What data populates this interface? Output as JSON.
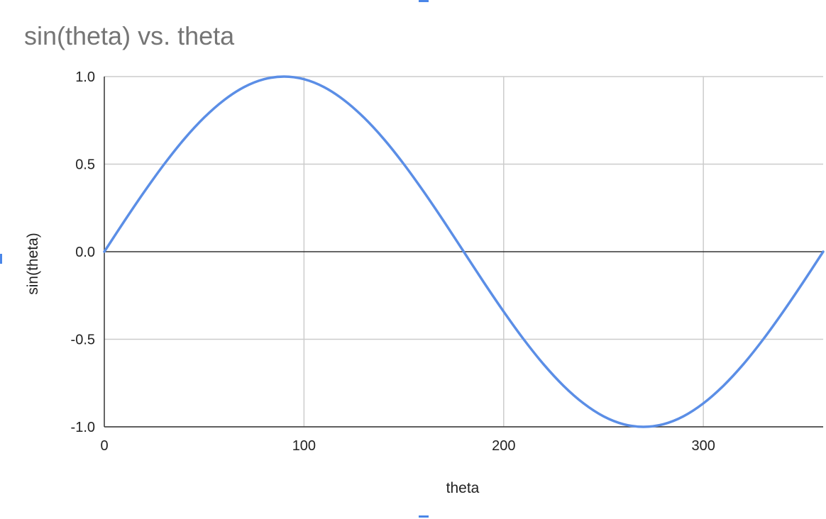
{
  "colors": {
    "series": "#5b8ee6",
    "grid": "#cccccc",
    "zero_line": "#333333",
    "title": "#757575",
    "text": "#222222",
    "selection_handle": "#4a86e8"
  },
  "chart_data": {
    "type": "line",
    "title": "sin(theta) vs. theta",
    "xlabel": "theta",
    "ylabel": "sin(theta)",
    "xlim": [
      0,
      360
    ],
    "ylim": [
      -1.0,
      1.0
    ],
    "x_ticks": [
      0,
      100,
      200,
      300
    ],
    "x_tick_labels": [
      "0",
      "100",
      "200",
      "300"
    ],
    "y_ticks": [
      1.0,
      0.5,
      0.0,
      -0.5,
      -1.0
    ],
    "y_tick_labels": [
      "1.0",
      "0.5",
      "0.0",
      "-0.5",
      "-1.0"
    ],
    "grid": true,
    "legend": "none",
    "series": [
      {
        "x": [
          0,
          10,
          20,
          30,
          40,
          50,
          60,
          70,
          80,
          90,
          100,
          110,
          120,
          130,
          140,
          150,
          160,
          170,
          180,
          190,
          200,
          210,
          220,
          230,
          240,
          250,
          260,
          270,
          280,
          290,
          300,
          310,
          320,
          330,
          340,
          350,
          360
        ],
        "values": [
          0.0,
          0.174,
          0.342,
          0.5,
          0.643,
          0.766,
          0.866,
          0.94,
          0.985,
          1.0,
          0.985,
          0.94,
          0.866,
          0.766,
          0.643,
          0.5,
          0.342,
          0.174,
          0.0,
          -0.174,
          -0.342,
          -0.5,
          -0.643,
          -0.766,
          -0.866,
          -0.94,
          -0.985,
          -1.0,
          -0.985,
          -0.94,
          -0.866,
          -0.766,
          -0.643,
          -0.5,
          -0.342,
          -0.174,
          0.0
        ]
      }
    ]
  }
}
